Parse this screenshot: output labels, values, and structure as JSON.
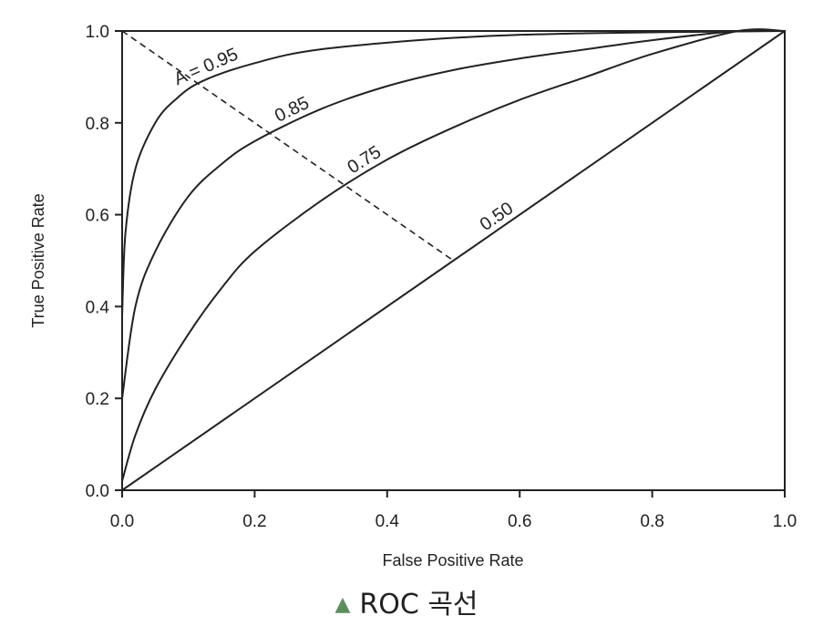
{
  "caption": {
    "marker_icon": "triangle-up-icon",
    "marker_color": "#5a8f5c",
    "text": "ROC 곡선"
  },
  "chart_data": {
    "type": "line",
    "title": "",
    "xlabel": "False Positive Rate",
    "ylabel": "True Positive Rate",
    "xlim": [
      0.0,
      1.0
    ],
    "ylim": [
      0.0,
      1.0
    ],
    "xticks": [
      "0.0",
      "0.2",
      "0.4",
      "0.6",
      "0.8",
      "1.0"
    ],
    "yticks": [
      "0.0",
      "0.2",
      "0.4",
      "0.6",
      "0.8",
      "1.0"
    ],
    "grid": false,
    "legend": "none",
    "series": [
      {
        "name": "A = 0.95",
        "label": "A = 0.95",
        "label_at_x": 0.13,
        "x": [
          0.0,
          0.005,
          0.02,
          0.05,
          0.08,
          0.12,
          0.2,
          0.3,
          0.5,
          0.7,
          1.0
        ],
        "y": [
          0.38,
          0.56,
          0.7,
          0.8,
          0.85,
          0.89,
          0.93,
          0.96,
          0.985,
          0.995,
          1.0
        ]
      },
      {
        "name": "0.85",
        "label": "0.85",
        "label_at_x": 0.26,
        "x": [
          0.0,
          0.02,
          0.05,
          0.1,
          0.15,
          0.2,
          0.3,
          0.4,
          0.5,
          0.6,
          0.7,
          0.8,
          0.93,
          1.0
        ],
        "y": [
          0.2,
          0.4,
          0.52,
          0.64,
          0.71,
          0.76,
          0.83,
          0.88,
          0.915,
          0.94,
          0.96,
          0.98,
          1.0,
          1.0
        ]
      },
      {
        "name": "0.75",
        "label": "0.75",
        "label_at_x": 0.37,
        "x": [
          0.0,
          0.02,
          0.05,
          0.1,
          0.15,
          0.2,
          0.3,
          0.4,
          0.5,
          0.6,
          0.7,
          0.8,
          0.93,
          1.0
        ],
        "y": [
          0.02,
          0.12,
          0.22,
          0.34,
          0.44,
          0.52,
          0.63,
          0.72,
          0.79,
          0.85,
          0.9,
          0.95,
          1.0,
          1.0
        ]
      },
      {
        "name": "0.50",
        "label": "0.50",
        "label_at_x": 0.57,
        "x": [
          0.0,
          1.0
        ],
        "y": [
          0.0,
          1.0
        ]
      }
    ],
    "annotations": [
      {
        "type": "dashed-line",
        "x": [
          0.0,
          0.5
        ],
        "y": [
          1.0,
          0.5
        ]
      }
    ]
  }
}
